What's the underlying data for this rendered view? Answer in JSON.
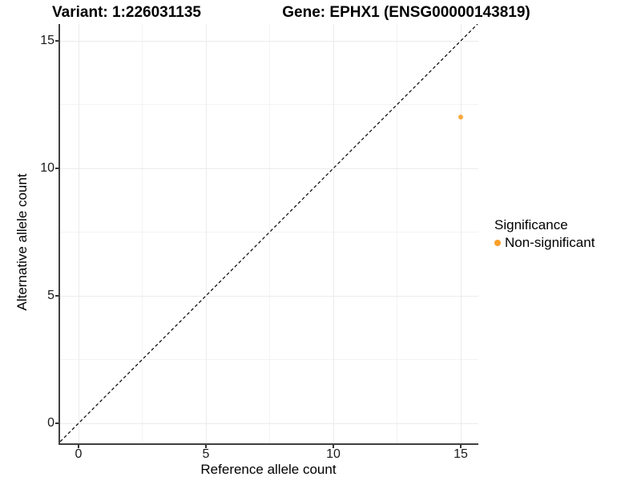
{
  "figure": {
    "title_left": "Variant: 1:226031135",
    "title_right": "Gene: EPHX1 (ENSG00000143819)"
  },
  "chart_data": {
    "type": "scatter",
    "title": "Variant: 1:226031135    Gene: EPHX1 (ENSG00000143819)",
    "xlabel": "Reference allele count",
    "ylabel": "Alternative allele count",
    "x_ticks": [
      0,
      5,
      10,
      15
    ],
    "y_ticks": [
      0,
      5,
      10,
      15
    ],
    "x_minor_gridlines": [
      2.5,
      7.5,
      12.5
    ],
    "y_minor_gridlines": [
      2.5,
      7.5,
      12.5
    ],
    "xlim": [
      -0.72,
      15.7
    ],
    "ylim": [
      -0.79,
      15.66
    ],
    "grid": true,
    "legend_position": "right",
    "series": [
      {
        "name": "Non-significant",
        "color": "#F9A029",
        "points": [
          {
            "x": 15,
            "y": 12
          }
        ]
      }
    ],
    "identity_line": {
      "style": "dashed",
      "slope": 1,
      "intercept": 0,
      "color": "#000000"
    },
    "legend": {
      "title": "Significance",
      "entries": [
        {
          "label": "Non-significant",
          "color": "#F9A029"
        }
      ]
    }
  },
  "colors": {
    "background": "#FFFFFF",
    "axis_line": "#404040",
    "grid_major": "#EBEBEB",
    "grid_minor": "#F3F3F3",
    "tick": "#333333",
    "point": "#F9A029"
  }
}
